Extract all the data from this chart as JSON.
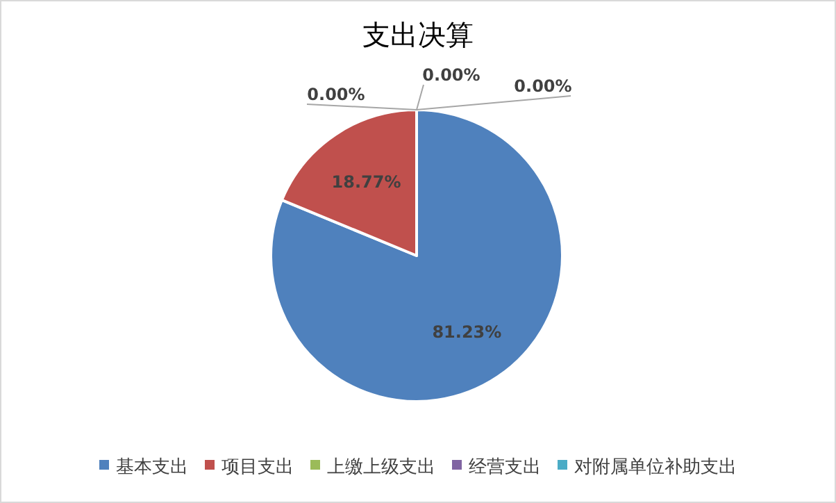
{
  "chart_data": {
    "type": "pie",
    "title": "支出决算",
    "categories": [
      "基本支出",
      "项目支出",
      "上缴上级支出",
      "经营支出",
      "对附属单位补助支出"
    ],
    "values": [
      81.23,
      18.77,
      0,
      0,
      0
    ],
    "colors": [
      "#4f81bd",
      "#c0504d",
      "#9bbb59",
      "#8064a2",
      "#4bacc6"
    ],
    "value_labels": [
      "81.23%",
      "18.77%",
      "0.00%",
      "0.00%",
      "0.00%"
    ],
    "legend": "bottom"
  }
}
